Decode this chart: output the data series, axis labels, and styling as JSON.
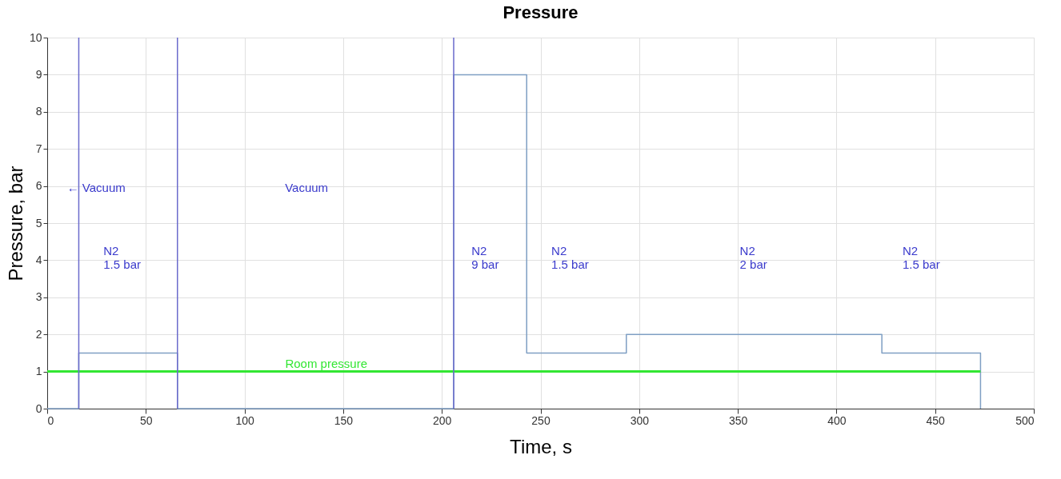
{
  "chart_data": {
    "type": "step",
    "title": "Pressure",
    "xlabel": "Time, s",
    "ylabel": "Pressure, bar",
    "xlim": [
      0,
      500
    ],
    "xticks": [
      0,
      50,
      100,
      150,
      200,
      250,
      300,
      350,
      400,
      450,
      500
    ],
    "ylim": [
      0,
      10
    ],
    "yticks": [
      0,
      1,
      2,
      3,
      4,
      5,
      6,
      7,
      8,
      9,
      10
    ],
    "grid": true,
    "series": [
      {
        "color": "#7f9fc4",
        "x": [
          0,
          16,
          66,
          206,
          243,
          293.5,
          423,
          473
        ],
        "values": [
          0,
          1.5,
          0,
          9,
          1.5,
          2,
          1.5,
          0
        ]
      },
      {
        "name": "Room pressure",
        "type": "line",
        "color": "#33e633",
        "x": [
          0,
          473
        ],
        "values": [
          1,
          1
        ]
      }
    ],
    "ref_lines": [
      {
        "axis": "x",
        "value": 16,
        "color": "#6b6bcc"
      },
      {
        "axis": "x",
        "value": 66,
        "color": "#6b6bcc"
      },
      {
        "axis": "x",
        "value": 206,
        "color": "#6b6bcc"
      }
    ],
    "annotations": [
      "← Vacuum",
      "Vacuum",
      "N2\n1.5 bar",
      "N2\n9 bar",
      "N2\n1.5 bar",
      "N2\n2 bar",
      "N2\n1.5 bar"
    ]
  }
}
